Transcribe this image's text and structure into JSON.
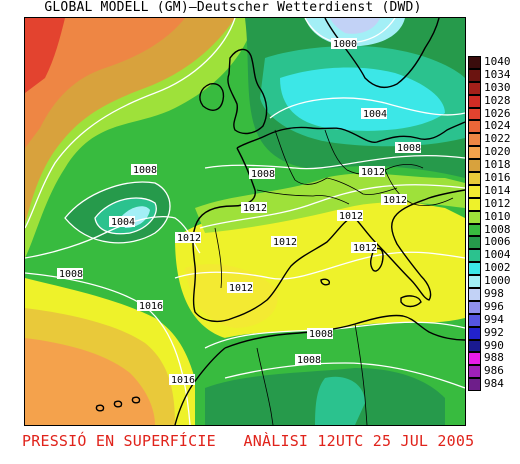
{
  "header": {
    "title": "GLOBAL MODELL (GM)–Deutscher Wetterdienst (DWD)"
  },
  "footer": {
    "caption": "PRESSIÓ EN SUPERFÍCIE   ANÀLISI 12UTC 25 JUL 2005"
  },
  "legend": {
    "items": [
      {
        "label": "1040",
        "color": "#3a0c0c"
      },
      {
        "label": "1034",
        "color": "#6b1410"
      },
      {
        "label": "1030",
        "color": "#a3201a"
      },
      {
        "label": "1028",
        "color": "#cf2c25"
      },
      {
        "label": "1026",
        "color": "#e3432f"
      },
      {
        "label": "1024",
        "color": "#ea6638"
      },
      {
        "label": "1022",
        "color": "#ee8644"
      },
      {
        "label": "1020",
        "color": "#f4a24c"
      },
      {
        "label": "1018",
        "color": "#d8a23d"
      },
      {
        "label": "1016",
        "color": "#e9c93a"
      },
      {
        "label": "1014",
        "color": "#f3ea32"
      },
      {
        "label": "1012",
        "color": "#eef22a"
      },
      {
        "label": "1010",
        "color": "#9ee13a"
      },
      {
        "label": "1008",
        "color": "#38bb3f"
      },
      {
        "label": "1006",
        "color": "#269a4b"
      },
      {
        "label": "1004",
        "color": "#2bc28e"
      },
      {
        "label": "1002",
        "color": "#3ce7e7"
      },
      {
        "label": "1000",
        "color": "#a3eff6"
      },
      {
        "label": "998",
        "color": "#c2d2f6"
      },
      {
        "label": "996",
        "color": "#9090ee"
      },
      {
        "label": "994",
        "color": "#5555e2"
      },
      {
        "label": "992",
        "color": "#2222cc"
      },
      {
        "label": "990",
        "color": "#1a1a90"
      },
      {
        "label": "988",
        "color": "#e81ce8"
      },
      {
        "label": "986",
        "color": "#a020b8"
      },
      {
        "label": "984",
        "color": "#6e1e8a"
      }
    ]
  },
  "isobars": [
    {
      "label": "1000"
    },
    {
      "label": "1004"
    },
    {
      "label": "1008"
    },
    {
      "label": "1008"
    },
    {
      "label": "1004"
    },
    {
      "label": "1008"
    },
    {
      "label": "1012"
    },
    {
      "label": "1012"
    },
    {
      "label": "1012"
    },
    {
      "label": "1012"
    },
    {
      "label": "1012"
    },
    {
      "label": "1012"
    },
    {
      "label": "1012"
    },
    {
      "label": "1012"
    },
    {
      "label": "1008"
    },
    {
      "label": "1016"
    },
    {
      "label": "1016"
    },
    {
      "label": "1008"
    },
    {
      "label": "1008"
    }
  ]
}
